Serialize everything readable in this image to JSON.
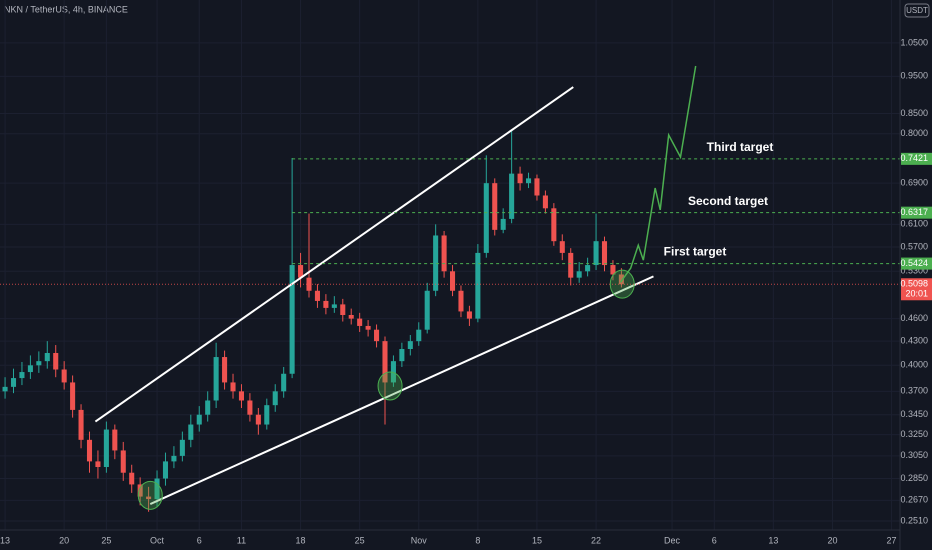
{
  "chart_data": {
    "type": "candlestick",
    "title": "NKN / TetherUS, 4h, BINANCE",
    "currency": "USDT",
    "log_scale": true,
    "grid": true,
    "xlim": [
      -0.6,
      106
    ],
    "ylim": [
      0.2443,
      1.194
    ],
    "xticks": [
      {
        "value": 0,
        "label": "13"
      },
      {
        "value": 7,
        "label": "20"
      },
      {
        "value": 12,
        "label": "25"
      },
      {
        "value": 18,
        "label": "Oct"
      },
      {
        "value": 23,
        "label": "6"
      },
      {
        "value": 28,
        "label": "11"
      },
      {
        "value": 35,
        "label": "18"
      },
      {
        "value": 42,
        "label": "25"
      },
      {
        "value": 49,
        "label": "Nov"
      },
      {
        "value": 56,
        "label": "8"
      },
      {
        "value": 63,
        "label": "15"
      },
      {
        "value": 70,
        "label": "22"
      },
      {
        "value": 79,
        "label": "Dec"
      },
      {
        "value": 84,
        "label": "6"
      },
      {
        "value": 91,
        "label": "13"
      },
      {
        "value": 98,
        "label": "20"
      },
      {
        "value": 105,
        "label": "27"
      }
    ],
    "yticks": [
      {
        "value": 1.05,
        "label": "1.0500"
      },
      {
        "value": 0.95,
        "label": "0.9500"
      },
      {
        "value": 0.85,
        "label": "0.8500"
      },
      {
        "value": 0.8,
        "label": "0.8000"
      },
      {
        "value": 0.69,
        "label": "0.6900"
      },
      {
        "value": 0.61,
        "label": "0.6100"
      },
      {
        "value": 0.57,
        "label": "0.5700"
      },
      {
        "value": 0.53,
        "label": "0.5300"
      },
      {
        "value": 0.46,
        "label": "0.4600"
      },
      {
        "value": 0.43,
        "label": "0.4300"
      },
      {
        "value": 0.4,
        "label": "0.4000"
      },
      {
        "value": 0.37,
        "label": "0.3700"
      },
      {
        "value": 0.345,
        "label": "0.3450"
      },
      {
        "value": 0.325,
        "label": "0.3250"
      },
      {
        "value": 0.305,
        "label": "0.3050"
      },
      {
        "value": 0.285,
        "label": "0.2850"
      },
      {
        "value": 0.267,
        "label": "0.2670"
      },
      {
        "value": 0.251,
        "label": "0.2510"
      }
    ],
    "up_color": "#26a69a",
    "down_color": "#ef5350",
    "candles": {
      "x": [
        0,
        1,
        2,
        3,
        4,
        5,
        6,
        7,
        8,
        9,
        10,
        11,
        12,
        13,
        14,
        15,
        16,
        17,
        18,
        19,
        20,
        21,
        22,
        23,
        24,
        25,
        26,
        27,
        28,
        29,
        30,
        31,
        32,
        33,
        34,
        35,
        36,
        37,
        38,
        39,
        40,
        41,
        42,
        43,
        44,
        45,
        46,
        47,
        48,
        49,
        50,
        51,
        52,
        53,
        54,
        55,
        56,
        57,
        58,
        59,
        60,
        61,
        62,
        63,
        64,
        65,
        66,
        67,
        68,
        69,
        70,
        71,
        72,
        73
      ],
      "open": [
        0.37,
        0.375,
        0.385,
        0.392,
        0.4,
        0.405,
        0.415,
        0.395,
        0.38,
        0.35,
        0.32,
        0.3,
        0.295,
        0.33,
        0.31,
        0.29,
        0.28,
        0.27,
        0.268,
        0.285,
        0.3,
        0.305,
        0.32,
        0.335,
        0.345,
        0.36,
        0.41,
        0.38,
        0.37,
        0.36,
        0.345,
        0.335,
        0.355,
        0.37,
        0.39,
        0.54,
        0.52,
        0.5,
        0.485,
        0.475,
        0.48,
        0.465,
        0.46,
        0.45,
        0.445,
        0.43,
        0.38,
        0.405,
        0.42,
        0.43,
        0.445,
        0.5,
        0.59,
        0.53,
        0.5,
        0.47,
        0.46,
        0.56,
        0.69,
        0.6,
        0.62,
        0.71,
        0.69,
        0.7,
        0.665,
        0.64,
        0.58,
        0.56,
        0.52,
        0.53,
        0.54,
        0.58,
        0.54,
        0.525
      ],
      "high": [
        0.386,
        0.396,
        0.404,
        0.412,
        0.417,
        0.43,
        0.425,
        0.405,
        0.388,
        0.356,
        0.328,
        0.31,
        0.338,
        0.335,
        0.318,
        0.297,
        0.286,
        0.278,
        0.292,
        0.308,
        0.314,
        0.328,
        0.345,
        0.354,
        0.37,
        0.428,
        0.418,
        0.39,
        0.378,
        0.368,
        0.352,
        0.362,
        0.378,
        0.398,
        0.744,
        0.56,
        0.63,
        0.51,
        0.495,
        0.492,
        0.488,
        0.474,
        0.468,
        0.458,
        0.452,
        0.436,
        0.412,
        0.428,
        0.438,
        0.455,
        0.512,
        0.61,
        0.598,
        0.54,
        0.508,
        0.478,
        0.575,
        0.75,
        0.7,
        0.64,
        0.81,
        0.725,
        0.712,
        0.708,
        0.675,
        0.65,
        0.592,
        0.568,
        0.545,
        0.552,
        0.63,
        0.588,
        0.548,
        0.535
      ],
      "low": [
        0.362,
        0.368,
        0.377,
        0.384,
        0.391,
        0.396,
        0.386,
        0.372,
        0.342,
        0.312,
        0.29,
        0.285,
        0.29,
        0.302,
        0.283,
        0.273,
        0.263,
        0.258,
        0.262,
        0.279,
        0.294,
        0.3,
        0.313,
        0.328,
        0.338,
        0.352,
        0.372,
        0.362,
        0.352,
        0.338,
        0.325,
        0.33,
        0.348,
        0.363,
        0.385,
        0.505,
        0.49,
        0.475,
        0.466,
        0.468,
        0.456,
        0.452,
        0.442,
        0.436,
        0.422,
        0.335,
        0.375,
        0.398,
        0.412,
        0.424,
        0.44,
        0.492,
        0.52,
        0.492,
        0.462,
        0.45,
        0.455,
        0.552,
        0.59,
        0.594,
        0.612,
        0.675,
        0.68,
        0.655,
        0.63,
        0.572,
        0.548,
        0.508,
        0.512,
        0.522,
        0.532,
        0.53,
        0.516,
        0.505
      ],
      "close": [
        0.375,
        0.385,
        0.392,
        0.4,
        0.405,
        0.415,
        0.395,
        0.38,
        0.35,
        0.32,
        0.3,
        0.295,
        0.33,
        0.31,
        0.29,
        0.28,
        0.27,
        0.268,
        0.285,
        0.3,
        0.305,
        0.32,
        0.335,
        0.345,
        0.36,
        0.41,
        0.38,
        0.37,
        0.36,
        0.345,
        0.335,
        0.355,
        0.37,
        0.39,
        0.54,
        0.52,
        0.5,
        0.485,
        0.475,
        0.48,
        0.465,
        0.46,
        0.45,
        0.445,
        0.43,
        0.38,
        0.405,
        0.42,
        0.43,
        0.445,
        0.5,
        0.59,
        0.53,
        0.5,
        0.47,
        0.46,
        0.56,
        0.69,
        0.6,
        0.62,
        0.71,
        0.69,
        0.7,
        0.665,
        0.64,
        0.58,
        0.56,
        0.52,
        0.53,
        0.54,
        0.58,
        0.54,
        0.525,
        0.5098
      ]
    },
    "targets": [
      {
        "name": "Third target",
        "value": 0.7421,
        "x_start": 34
      },
      {
        "name": "Second target",
        "value": 0.6317,
        "x_start": 34
      },
      {
        "name": "First target",
        "value": 0.5424,
        "x_start": 34
      }
    ],
    "target_color": "#4caf50",
    "last_price": 0.5098,
    "countdown": "20:01",
    "trend_lines": [
      {
        "x": [
          10.7,
          67.3
        ],
        "y": [
          0.338,
          0.92
        ]
      },
      {
        "x": [
          17.2,
          76.8
        ],
        "y": [
          0.264,
          0.522
        ]
      }
    ],
    "trend_color": "#ffffff",
    "highlights": {
      "x": [
        17.2,
        45.6,
        73.1
      ],
      "y": [
        0.271,
        0.376,
        0.51
      ]
    },
    "projection": {
      "x": [
        72.9,
        74.1,
        75.0,
        75.6,
        77.0,
        77.6,
        78.6,
        80.0,
        81.8
      ],
      "y": [
        0.513,
        0.535,
        0.573,
        0.548,
        0.68,
        0.637,
        0.797,
        0.746,
        0.98
      ],
      "color": "#4caf50"
    }
  }
}
